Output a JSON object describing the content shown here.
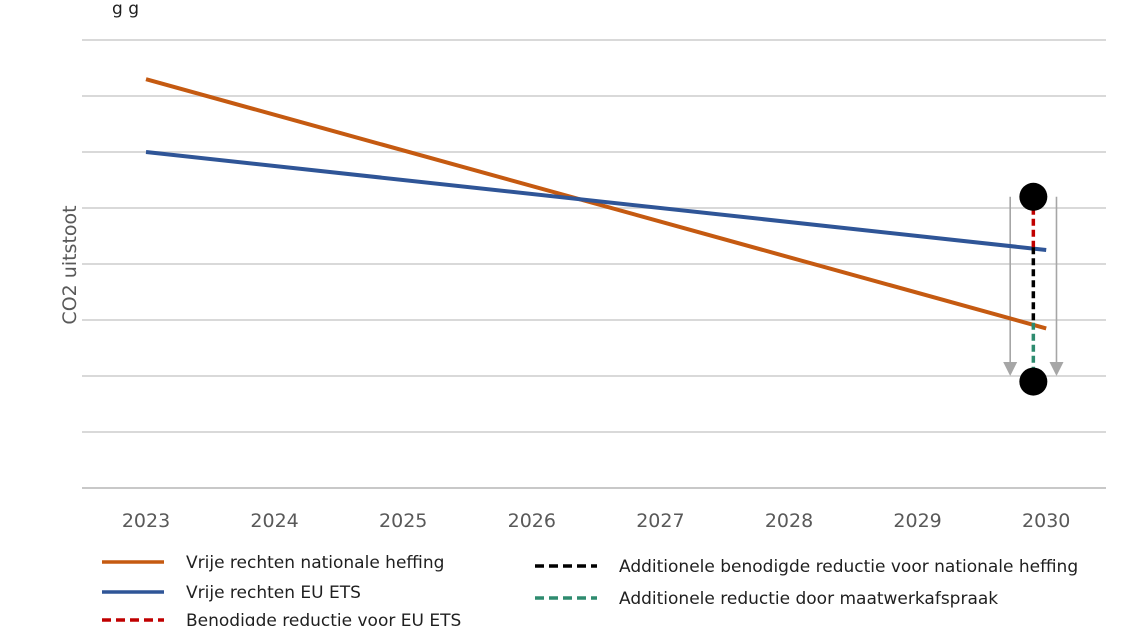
{
  "chart_data": {
    "type": "line",
    "title": "",
    "top_fragment": "g         g",
    "xlabel": "",
    "ylabel": "CO2 uitstoot",
    "categories": [
      "2023",
      "2024",
      "2025",
      "2026",
      "2027",
      "2028",
      "2029",
      "2030"
    ],
    "ylim": [
      0,
      8
    ],
    "grid": true,
    "series": [
      {
        "name": "Vrije rechten nationale heffing",
        "color": "#c55a11",
        "style": "solid",
        "points": [
          {
            "x": 2023,
            "y": 7.3
          },
          {
            "x": 2030,
            "y": 2.85
          }
        ]
      },
      {
        "name": "Vrije rechten EU ETS",
        "color": "#2f5597",
        "style": "solid",
        "points": [
          {
            "x": 2023,
            "y": 6.0
          },
          {
            "x": 2030,
            "y": 4.25
          }
        ]
      }
    ],
    "markers": [
      {
        "x": 2029.9,
        "y": 5.2,
        "shape": "filled-circle",
        "color": "#000000"
      },
      {
        "x": 2029.9,
        "y": 1.9,
        "shape": "filled-circle",
        "color": "#000000"
      }
    ],
    "reduction_segments": [
      {
        "name": "Benodigde reductie voor EU ETS",
        "color": "#c00000",
        "style": "dashed",
        "x": 2029.9,
        "y_from": 5.2,
        "y_to": 4.3
      },
      {
        "name": "Additionele benodigde reductie voor nationale heffing",
        "color": "#000000",
        "style": "dashed",
        "x": 2029.9,
        "y_from": 4.3,
        "y_to": 2.95
      },
      {
        "name": "Additionele reductie door maatwerkafspraak",
        "color": "#2e8b6f",
        "style": "dashed",
        "x": 2029.9,
        "y_from": 2.95,
        "y_to": 1.9
      }
    ],
    "arrows": [
      {
        "x": 2029.72,
        "y_from": 5.2,
        "y_to": 2.0,
        "color": "#a6a6a6"
      },
      {
        "x": 2030.08,
        "y_from": 5.2,
        "y_to": 2.0,
        "color": "#a6a6a6"
      }
    ],
    "legend": {
      "placement": "bottom",
      "entries": [
        {
          "label": "Vrije rechten nationale heffing",
          "color": "#c55a11",
          "style": "solid"
        },
        {
          "label": "Vrije rechten EU ETS",
          "color": "#2f5597",
          "style": "solid"
        },
        {
          "label": "Benodigde reductie voor EU ETS",
          "color": "#c00000",
          "style": "dashed"
        },
        {
          "label": "Additionele benodigde reductie voor nationale heffing",
          "color": "#000000",
          "style": "dashed"
        },
        {
          "label": "Additionele reductie door maatwerkafspraak",
          "color": "#2e8b6f",
          "style": "dashed"
        }
      ]
    }
  }
}
